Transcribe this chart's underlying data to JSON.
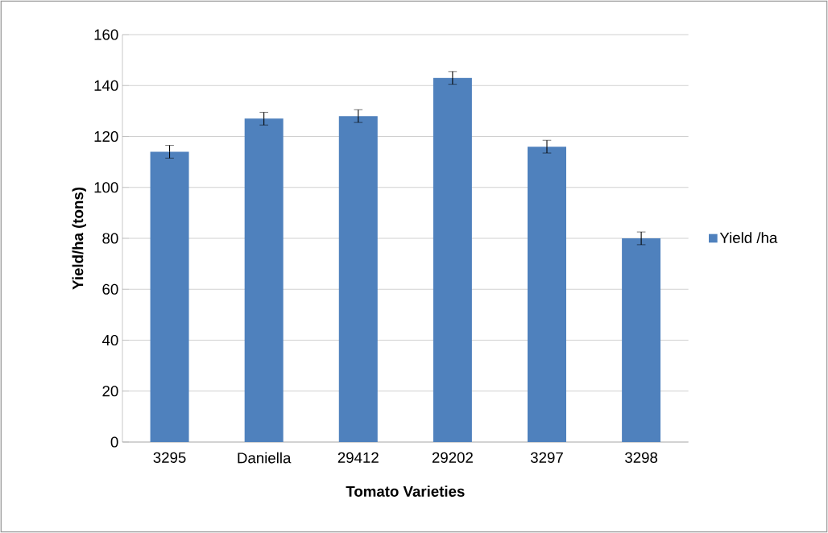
{
  "chart_data": {
    "type": "bar",
    "xlabel": "Tomato Varieties",
    "ylabel": "Yield/ha (tons)",
    "categories": [
      "3295",
      "Daniella",
      "29412",
      "29202",
      "3297",
      "3298"
    ],
    "series": [
      {
        "name": "Yield /ha",
        "color": "#4f81bd",
        "values": [
          114,
          127,
          128,
          143,
          116,
          80
        ],
        "errors": [
          2.5,
          2.5,
          2.5,
          2.5,
          2.5,
          2.5
        ]
      }
    ],
    "ylim": [
      0,
      160
    ],
    "yticks": [
      0,
      20,
      40,
      60,
      80,
      100,
      120,
      140,
      160
    ],
    "grid": "y",
    "legend": "right"
  }
}
